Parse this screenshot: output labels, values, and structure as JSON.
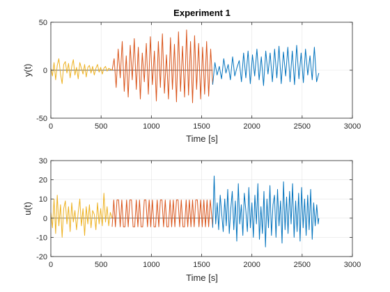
{
  "chart_data": [
    {
      "type": "line",
      "title": "Experiment 1",
      "xlabel": "Time [s]",
      "ylabel": "y(t)",
      "xlim": [
        0,
        3000
      ],
      "ylim": [
        -50,
        50
      ],
      "xticks": [
        0,
        500,
        1000,
        1500,
        2000,
        2500,
        3000
      ],
      "yticks": [
        -50,
        0,
        50
      ],
      "grid": true,
      "legend": "none",
      "series": [
        {
          "color": "#EDB120",
          "x": [
            0,
            16,
            32,
            48,
            64,
            80,
            96,
            112,
            128,
            144,
            160,
            176,
            192,
            208,
            224,
            240,
            256,
            272,
            288,
            304,
            320,
            336,
            352,
            368,
            384,
            400,
            416,
            432,
            448,
            464,
            480,
            496,
            512,
            528,
            544,
            560,
            576,
            592,
            610
          ],
          "y": [
            2,
            -6,
            8,
            -10,
            5,
            12,
            -4,
            -14,
            6,
            9,
            -3,
            7,
            -8,
            4,
            11,
            -5,
            3,
            -9,
            8,
            2,
            -4,
            6,
            -7,
            3,
            5,
            -3,
            4,
            -5,
            2,
            6,
            -2,
            3,
            -4,
            2,
            4,
            -1,
            2,
            1,
            0
          ]
        },
        {
          "color": "#D95319",
          "x": [
            610,
            630,
            650,
            670,
            690,
            710,
            730,
            750,
            770,
            790,
            810,
            830,
            850,
            870,
            890,
            910,
            930,
            950,
            970,
            990,
            1010,
            1030,
            1050,
            1070,
            1090,
            1110,
            1130,
            1150,
            1170,
            1190,
            1210,
            1230,
            1250,
            1270,
            1290,
            1310,
            1330,
            1350,
            1370,
            1390,
            1410,
            1430,
            1450,
            1470,
            1490,
            1510,
            1530,
            1550,
            1570,
            1590,
            1610
          ],
          "y": [
            0,
            12,
            -18,
            22,
            -8,
            30,
            -22,
            15,
            -28,
            26,
            -10,
            33,
            -20,
            24,
            -30,
            18,
            -12,
            28,
            -25,
            35,
            -15,
            20,
            -32,
            30,
            -18,
            38,
            -24,
            16,
            -30,
            34,
            -20,
            27,
            -33,
            40,
            -22,
            25,
            -28,
            42,
            -26,
            30,
            -34,
            36,
            -20,
            28,
            -30,
            24,
            -25,
            30,
            -27,
            22,
            -15
          ]
        },
        {
          "color": "#0072BD",
          "x": [
            1610,
            1632,
            1654,
            1676,
            1698,
            1720,
            1742,
            1764,
            1786,
            1808,
            1830,
            1852,
            1874,
            1896,
            1918,
            1940,
            1962,
            1984,
            2006,
            2028,
            2050,
            2072,
            2094,
            2116,
            2138,
            2160,
            2182,
            2204,
            2226,
            2248,
            2270,
            2292,
            2314,
            2336,
            2358,
            2380,
            2402,
            2424,
            2446,
            2468,
            2490,
            2512,
            2534,
            2556,
            2578,
            2600,
            2622,
            2644,
            2666
          ],
          "y": [
            -15,
            8,
            -5,
            4,
            -9,
            12,
            -3,
            6,
            -10,
            14,
            -6,
            3,
            10,
            -12,
            18,
            -8,
            20,
            -14,
            16,
            -6,
            22,
            -10,
            14,
            -16,
            20,
            -4,
            18,
            -12,
            22,
            -8,
            25,
            -14,
            19,
            -6,
            24,
            -12,
            20,
            -15,
            26,
            -9,
            18,
            -13,
            22,
            -5,
            15,
            -10,
            24,
            -12,
            -3
          ]
        }
      ]
    },
    {
      "type": "line",
      "title": "",
      "xlabel": "Time [s]",
      "ylabel": "u(t)",
      "xlim": [
        0,
        3000
      ],
      "ylim": [
        -20,
        30
      ],
      "xticks": [
        0,
        500,
        1000,
        1500,
        2000,
        2500,
        3000
      ],
      "yticks": [
        -20,
        -10,
        0,
        10,
        20,
        30
      ],
      "grid": true,
      "legend": "none",
      "series": [
        {
          "color": "#EDB120",
          "x": [
            0,
            16,
            32,
            48,
            64,
            80,
            96,
            112,
            128,
            144,
            160,
            176,
            192,
            208,
            224,
            240,
            256,
            272,
            288,
            304,
            320,
            336,
            352,
            368,
            384,
            400,
            416,
            432,
            448,
            464,
            480,
            496,
            512,
            528,
            544,
            560,
            576,
            592,
            610
          ],
          "y": [
            3,
            -5,
            10,
            -8,
            12,
            -4,
            7,
            -10,
            5,
            9,
            -3,
            6,
            -7,
            8,
            -2,
            4,
            -6,
            3,
            10,
            -4,
            5,
            -9,
            6,
            -3,
            7,
            -5,
            4,
            2,
            -6,
            8,
            -3,
            5,
            -4,
            13,
            -2,
            6,
            -4,
            3,
            0
          ]
        },
        {
          "color": "#D95319",
          "x": [
            610,
            626,
            642,
            658,
            674,
            690,
            706,
            722,
            738,
            754,
            770,
            786,
            802,
            818,
            834,
            850,
            866,
            882,
            898,
            914,
            930,
            946,
            962,
            978,
            994,
            1010,
            1026,
            1042,
            1058,
            1074,
            1090,
            1106,
            1122,
            1138,
            1154,
            1170,
            1186,
            1202,
            1218,
            1234,
            1250,
            1266,
            1282,
            1298,
            1314,
            1330,
            1346,
            1362,
            1378,
            1394,
            1410,
            1426,
            1442,
            1458,
            1474,
            1490,
            1506,
            1522,
            1538,
            1554,
            1570,
            1586,
            1610
          ],
          "y": [
            -4.5,
            9.5,
            -4.5,
            9.5,
            9.5,
            -4.5,
            9.5,
            -4.5,
            -4.5,
            9.5,
            -4.5,
            9.5,
            9.5,
            -4.5,
            -4.5,
            9.5,
            -4.5,
            9.5,
            -4.5,
            -4.5,
            9.5,
            9.5,
            -4.5,
            9.5,
            -4.5,
            9.5,
            -4.5,
            -4.5,
            9.5,
            -4.5,
            9.5,
            9.5,
            -4.5,
            9.5,
            -4.5,
            -4.5,
            9.5,
            -4.5,
            9.5,
            -4.5,
            9.5,
            9.5,
            -4.5,
            9.5,
            -4.5,
            -4.5,
            9.5,
            -4.5,
            9.5,
            -4.5,
            9.5,
            -4.5,
            9.5,
            9.5,
            -4.5,
            9.5,
            -4.5,
            9.5,
            -4.5,
            9.5,
            -4.5,
            9.5,
            -4.5
          ]
        },
        {
          "color": "#0072BD",
          "x": [
            1610,
            1625,
            1640,
            1655,
            1670,
            1685,
            1700,
            1715,
            1730,
            1745,
            1760,
            1775,
            1790,
            1805,
            1820,
            1835,
            1850,
            1865,
            1880,
            1895,
            1910,
            1925,
            1940,
            1955,
            1970,
            1985,
            2000,
            2015,
            2030,
            2045,
            2060,
            2075,
            2090,
            2105,
            2120,
            2135,
            2150,
            2165,
            2180,
            2195,
            2210,
            2225,
            2240,
            2255,
            2270,
            2285,
            2300,
            2315,
            2330,
            2345,
            2360,
            2375,
            2390,
            2405,
            2420,
            2435,
            2450,
            2465,
            2480,
            2495,
            2510,
            2525,
            2540,
            2555,
            2570,
            2585,
            2600,
            2615,
            2630,
            2645,
            2660,
            2666
          ],
          "y": [
            -5,
            22,
            -3,
            8,
            -6,
            12,
            2,
            -7,
            10,
            -4,
            15,
            -8,
            5,
            14,
            -6,
            9,
            -12,
            18,
            -3,
            7,
            -9,
            13,
            4,
            -7,
            16,
            -5,
            8,
            -10,
            12,
            -3,
            18,
            -11,
            6,
            -8,
            14,
            -15,
            10,
            -5,
            17,
            -9,
            7,
            12,
            -10,
            15,
            -4,
            9,
            -13,
            19,
            -6,
            11,
            -8,
            14,
            -3,
            18,
            -10,
            9,
            -7,
            13,
            -12,
            16,
            -5,
            10,
            -9,
            12,
            -6,
            15,
            -11,
            8,
            -4,
            7,
            -3,
            0
          ]
        }
      ]
    }
  ]
}
